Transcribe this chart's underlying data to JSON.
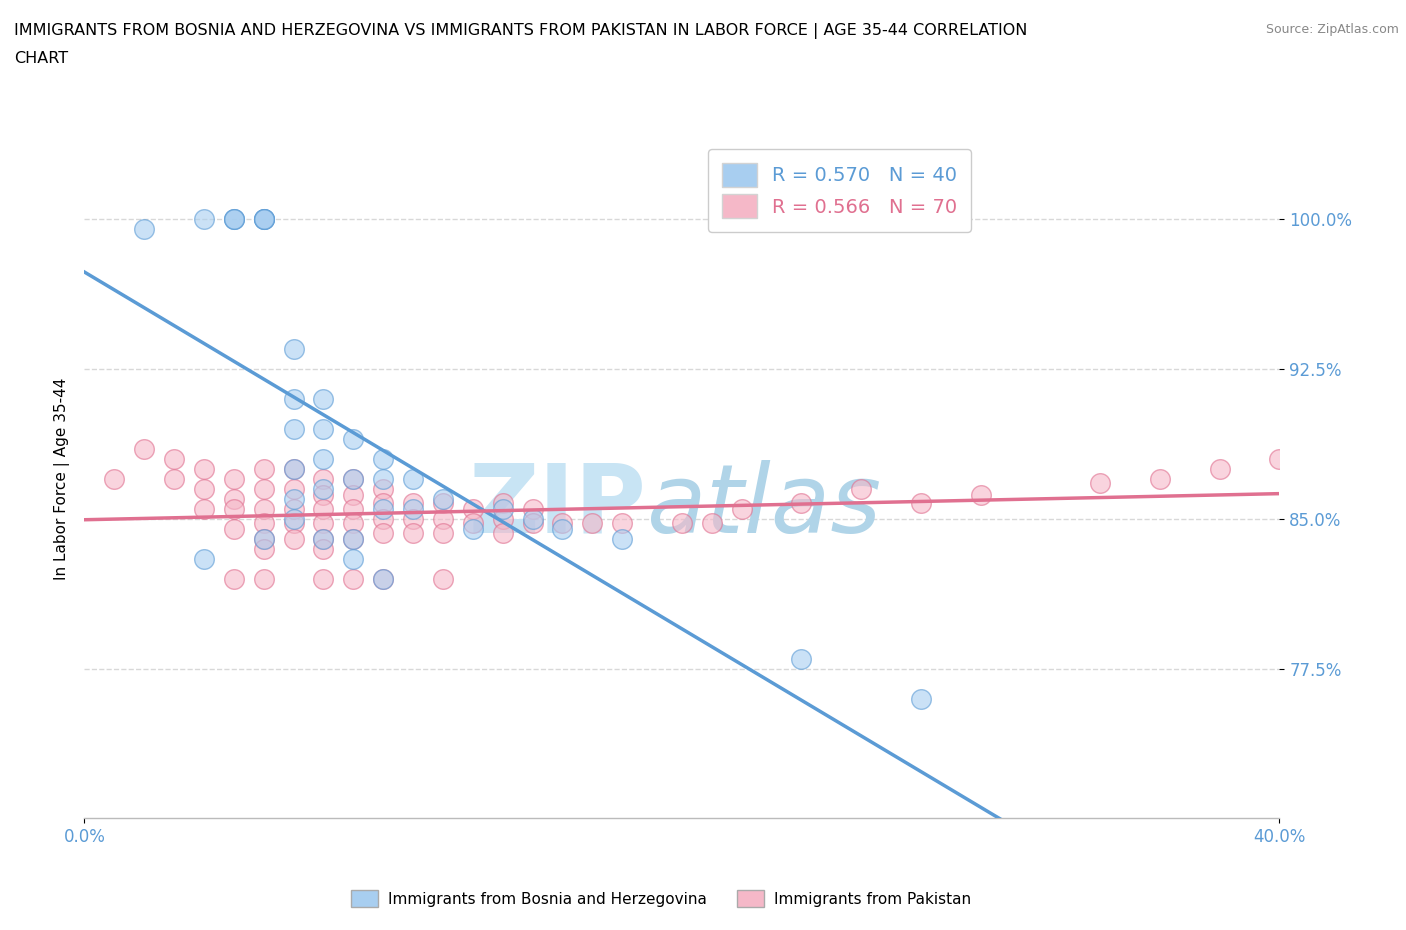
{
  "title_line1": "IMMIGRANTS FROM BOSNIA AND HERZEGOVINA VS IMMIGRANTS FROM PAKISTAN IN LABOR FORCE | AGE 35-44 CORRELATION",
  "title_line2": "CHART",
  "source_text": "Source: ZipAtlas.com",
  "ylabel_label": "In Labor Force | Age 35-44",
  "legend_bosnia_r": "R = 0.570",
  "legend_bosnia_n": "N = 40",
  "legend_pakistan_r": "R = 0.566",
  "legend_pakistan_n": "N = 70",
  "bosnia_color": "#a8cef0",
  "pakistan_color": "#f5b8c8",
  "bosnia_line_color": "#5b9bd5",
  "pakistan_line_color": "#e07090",
  "watermark_zip_color": "#c8e4f4",
  "watermark_atlas_color": "#b0d4e8",
  "xmin": 0.0,
  "xmax": 0.4,
  "ymin": 0.7,
  "ymax": 1.04,
  "yticks": [
    0.775,
    0.85,
    0.925,
    1.0
  ],
  "xticks": [
    0.0,
    0.05,
    0.1,
    0.15,
    0.2,
    0.25,
    0.3,
    0.35,
    0.4
  ],
  "grid_color": "#d8d8d8",
  "background_color": "#ffffff",
  "tick_color": "#5b9bd5",
  "bosnia_x": [
    0.02,
    0.04,
    0.05,
    0.05,
    0.05,
    0.06,
    0.06,
    0.06,
    0.06,
    0.07,
    0.07,
    0.07,
    0.07,
    0.07,
    0.08,
    0.08,
    0.08,
    0.08,
    0.09,
    0.09,
    0.1,
    0.1,
    0.1,
    0.11,
    0.11,
    0.12,
    0.13,
    0.14,
    0.15,
    0.16,
    0.18,
    0.04,
    0.06,
    0.07,
    0.08,
    0.09,
    0.09,
    0.1,
    0.24,
    0.28
  ],
  "bosnia_y": [
    0.995,
    1.0,
    1.0,
    1.0,
    1.0,
    1.0,
    1.0,
    1.0,
    1.0,
    0.935,
    0.91,
    0.895,
    0.875,
    0.86,
    0.91,
    0.895,
    0.88,
    0.865,
    0.89,
    0.87,
    0.88,
    0.87,
    0.855,
    0.87,
    0.855,
    0.86,
    0.845,
    0.855,
    0.85,
    0.845,
    0.84,
    0.83,
    0.84,
    0.85,
    0.84,
    0.84,
    0.83,
    0.82,
    0.78,
    0.76
  ],
  "pakistan_x": [
    0.01,
    0.02,
    0.03,
    0.03,
    0.04,
    0.04,
    0.04,
    0.05,
    0.05,
    0.05,
    0.05,
    0.06,
    0.06,
    0.06,
    0.06,
    0.06,
    0.06,
    0.07,
    0.07,
    0.07,
    0.07,
    0.07,
    0.08,
    0.08,
    0.08,
    0.08,
    0.08,
    0.08,
    0.09,
    0.09,
    0.09,
    0.09,
    0.09,
    0.1,
    0.1,
    0.1,
    0.1,
    0.11,
    0.11,
    0.11,
    0.12,
    0.12,
    0.12,
    0.13,
    0.13,
    0.14,
    0.14,
    0.14,
    0.15,
    0.15,
    0.16,
    0.17,
    0.18,
    0.2,
    0.21,
    0.22,
    0.24,
    0.26,
    0.28,
    0.3,
    0.34,
    0.36,
    0.38,
    0.4,
    0.05,
    0.06,
    0.08,
    0.09,
    0.1,
    0.12
  ],
  "pakistan_y": [
    0.87,
    0.885,
    0.87,
    0.88,
    0.875,
    0.865,
    0.855,
    0.87,
    0.86,
    0.855,
    0.845,
    0.875,
    0.865,
    0.855,
    0.848,
    0.84,
    0.835,
    0.875,
    0.865,
    0.855,
    0.848,
    0.84,
    0.87,
    0.862,
    0.855,
    0.848,
    0.84,
    0.835,
    0.87,
    0.862,
    0.855,
    0.848,
    0.84,
    0.865,
    0.858,
    0.85,
    0.843,
    0.858,
    0.85,
    0.843,
    0.858,
    0.85,
    0.843,
    0.855,
    0.848,
    0.858,
    0.85,
    0.843,
    0.855,
    0.848,
    0.848,
    0.848,
    0.848,
    0.848,
    0.848,
    0.855,
    0.858,
    0.865,
    0.858,
    0.862,
    0.868,
    0.87,
    0.875,
    0.88,
    0.82,
    0.82,
    0.82,
    0.82,
    0.82,
    0.82
  ]
}
